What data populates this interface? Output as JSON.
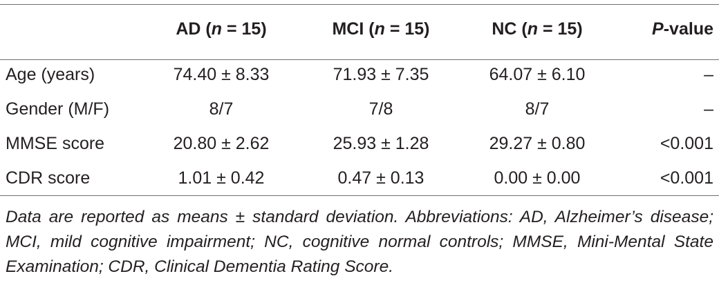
{
  "table": {
    "headers": [
      {
        "pre": "",
        "label": "",
        "n_symbol": "",
        "eq": "",
        "post": ""
      },
      {
        "pre": "AD (",
        "n_symbol": "n",
        "eq": " = 15)",
        "post": ""
      },
      {
        "pre": "MCI (",
        "n_symbol": "n",
        "eq": " = 15)",
        "post": ""
      },
      {
        "pre": "NC (",
        "n_symbol": "n",
        "eq": " = 15)",
        "post": ""
      },
      {
        "pre": "",
        "n_symbol": "P",
        "eq": "-value",
        "post": ""
      }
    ],
    "rows": [
      {
        "label": "Age (years)",
        "ad": "74.40 ± 8.33",
        "mci": "71.93 ± 7.35",
        "nc": "64.07 ± 6.10",
        "p": "–"
      },
      {
        "label": "Gender (M/F)",
        "ad": "8/7",
        "mci": "7/8",
        "nc": "8/7",
        "p": "–"
      },
      {
        "label": "MMSE score",
        "ad": "20.80 ± 2.62",
        "mci": "25.93 ± 1.28",
        "nc": "29.27 ± 0.80",
        "p": "<0.001"
      },
      {
        "label": "CDR score",
        "ad": "1.01 ± 0.42",
        "mci": "0.47 ± 0.13",
        "nc": "0.00 ± 0.00",
        "p": "<0.001"
      }
    ]
  },
  "footnote": "Data are reported as means ± standard deviation. Abbreviations: AD, Alzheimer’s disease; MCI, mild cognitive impairment; NC, cognitive normal controls; MMSE, Mini-Mental State Examination; CDR, Clinical Dementia Rating Score."
}
